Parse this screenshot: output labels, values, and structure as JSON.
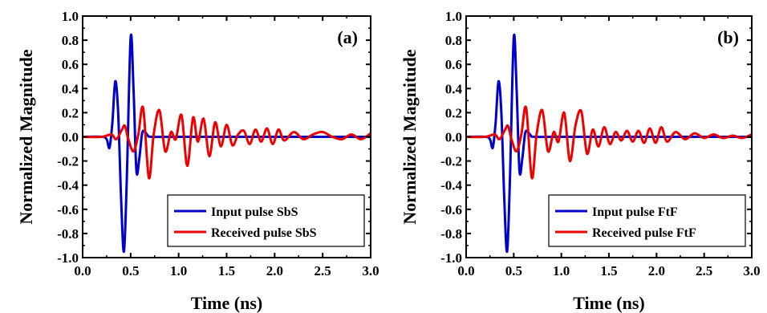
{
  "chart_data": [
    {
      "type": "line",
      "panel_label": "(a)",
      "xlabel": "Time (ns)",
      "ylabel": "Normalized Magnitude",
      "xlim": [
        0.0,
        3.0
      ],
      "ylim": [
        -1.0,
        1.0
      ],
      "xticks": [
        "0.0",
        "0.5",
        "1.0",
        "1.5",
        "2.0",
        "2.5",
        "3.0"
      ],
      "yticks": [
        "1.0",
        "0.8",
        "0.6",
        "0.4",
        "0.2",
        "0.0",
        "-0.2",
        "-0.4",
        "-0.6",
        "-0.8",
        "-1.0"
      ],
      "legend_position": "bottom-right",
      "series": [
        {
          "name": "Input pulse SbS",
          "color": "#0000cc",
          "x": [
            0.0,
            0.2,
            0.25,
            0.28,
            0.31,
            0.34,
            0.37,
            0.4,
            0.43,
            0.46,
            0.5,
            0.53,
            0.56,
            0.59,
            0.62,
            0.65,
            0.68,
            0.72,
            1.0,
            2.0,
            3.0
          ],
          "y": [
            0.0,
            0.0,
            -0.02,
            -0.09,
            0.12,
            0.46,
            0.2,
            -0.5,
            -0.95,
            -0.35,
            0.82,
            0.4,
            -0.28,
            -0.18,
            0.03,
            0.04,
            0.01,
            0.0,
            0.0,
            0.0,
            0.0
          ]
        },
        {
          "name": "Received pulse SbS",
          "color": "#ee0000",
          "x": [
            0.0,
            0.2,
            0.3,
            0.35,
            0.41,
            0.44,
            0.48,
            0.53,
            0.58,
            0.63,
            0.69,
            0.74,
            0.8,
            0.86,
            0.92,
            0.97,
            1.03,
            1.09,
            1.15,
            1.2,
            1.26,
            1.32,
            1.38,
            1.44,
            1.5,
            1.56,
            1.62,
            1.68,
            1.74,
            1.8,
            1.86,
            1.92,
            1.98,
            2.04,
            2.1,
            2.2,
            2.3,
            2.4,
            2.5,
            2.6,
            2.7,
            2.8,
            2.9,
            3.0
          ],
          "y": [
            0.0,
            0.0,
            0.02,
            -0.02,
            0.06,
            0.09,
            -0.03,
            -0.12,
            0.02,
            0.24,
            -0.34,
            0.02,
            0.22,
            -0.12,
            0.04,
            -0.02,
            0.18,
            -0.24,
            0.16,
            -0.04,
            0.15,
            -0.16,
            0.12,
            -0.08,
            0.1,
            -0.07,
            0.02,
            0.05,
            -0.06,
            0.06,
            -0.04,
            0.07,
            -0.06,
            0.06,
            -0.03,
            0.04,
            -0.02,
            0.02,
            0.04,
            0.0,
            -0.02,
            0.02,
            -0.02,
            0.03
          ]
        }
      ]
    },
    {
      "type": "line",
      "panel_label": "(b)",
      "xlabel": "Time (ns)",
      "ylabel": "Normalized Magnitude",
      "xlim": [
        0.0,
        3.0
      ],
      "ylim": [
        -1.0,
        1.0
      ],
      "xticks": [
        "0.0",
        "0.5",
        "1.0",
        "1.5",
        "2.0",
        "2.5",
        "3.0"
      ],
      "yticks": [
        "1.0",
        "0.8",
        "0.6",
        "0.4",
        "0.2",
        "0.0",
        "-0.2",
        "-0.4",
        "-0.6",
        "-0.8",
        "-1.0"
      ],
      "legend_position": "bottom-right",
      "series": [
        {
          "name": "Input pulse FtF",
          "color": "#0000cc",
          "x": [
            0.0,
            0.2,
            0.25,
            0.28,
            0.31,
            0.34,
            0.37,
            0.4,
            0.43,
            0.46,
            0.5,
            0.53,
            0.56,
            0.59,
            0.62,
            0.65,
            0.68,
            0.72,
            1.0,
            2.0,
            3.0
          ],
          "y": [
            0.0,
            0.0,
            -0.02,
            -0.09,
            0.12,
            0.46,
            0.2,
            -0.5,
            -0.95,
            -0.35,
            0.82,
            0.4,
            -0.28,
            -0.18,
            0.03,
            0.04,
            0.01,
            0.0,
            0.0,
            0.0,
            0.0
          ]
        },
        {
          "name": "Received pulse FtF",
          "color": "#ee0000",
          "x": [
            0.0,
            0.2,
            0.3,
            0.35,
            0.41,
            0.44,
            0.48,
            0.53,
            0.58,
            0.63,
            0.69,
            0.74,
            0.8,
            0.86,
            0.92,
            0.97,
            1.03,
            1.09,
            1.15,
            1.21,
            1.27,
            1.33,
            1.39,
            1.45,
            1.51,
            1.57,
            1.63,
            1.69,
            1.75,
            1.81,
            1.87,
            1.93,
            1.99,
            2.05,
            2.11,
            2.2,
            2.3,
            2.4,
            2.5,
            2.6,
            2.7,
            2.8,
            2.9,
            3.0
          ],
          "y": [
            0.0,
            0.0,
            0.02,
            -0.02,
            0.06,
            0.09,
            -0.03,
            -0.12,
            0.02,
            0.24,
            -0.34,
            0.02,
            0.22,
            -0.12,
            0.04,
            -0.04,
            0.2,
            -0.2,
            0.1,
            0.21,
            -0.14,
            0.06,
            -0.08,
            0.08,
            -0.06,
            0.04,
            -0.03,
            0.05,
            -0.04,
            0.05,
            -0.05,
            0.07,
            -0.05,
            0.08,
            -0.04,
            0.04,
            -0.02,
            0.03,
            -0.01,
            0.02,
            -0.01,
            0.01,
            -0.01,
            0.02
          ]
        }
      ]
    }
  ]
}
